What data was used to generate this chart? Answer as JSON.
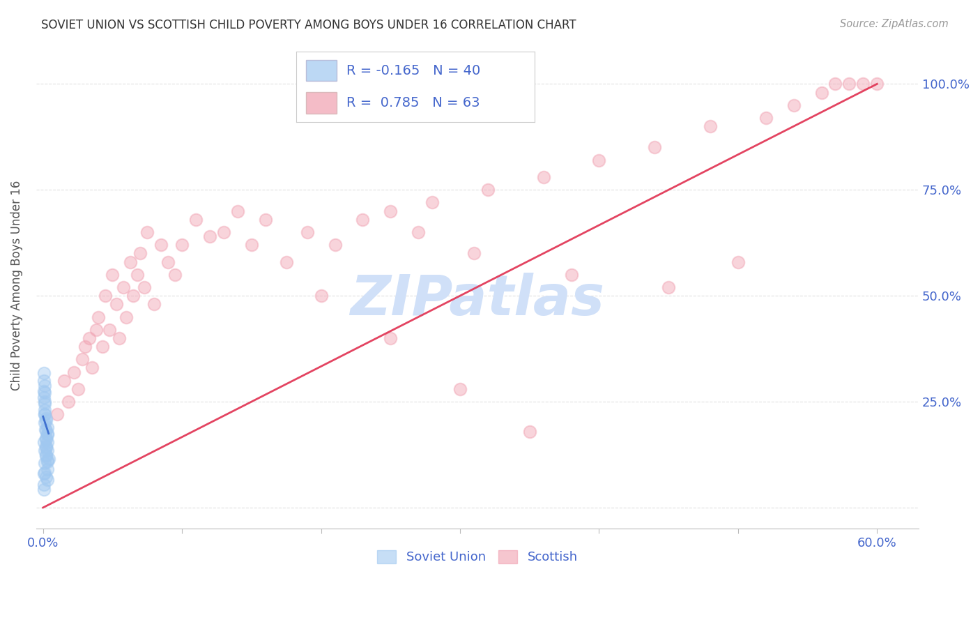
{
  "title": "SOVIET UNION VS SCOTTISH CHILD POVERTY AMONG BOYS UNDER 16 CORRELATION CHART",
  "source": "Source: ZipAtlas.com",
  "ylabel": "Child Poverty Among Boys Under 16",
  "xlim": [
    -0.005,
    0.63
  ],
  "ylim": [
    -0.05,
    1.1
  ],
  "legend_r1": "-0.165",
  "legend_n1": "40",
  "legend_r2": "0.785",
  "legend_n2": "63",
  "blue_color": "#A0C8F0",
  "pink_color": "#F0A0B0",
  "trendline_blue_color": "#3366CC",
  "trendline_pink_color": "#E03050",
  "watermark_color": "#D0E0F8",
  "axis_label_color": "#4466CC",
  "title_color": "#333333",
  "background_color": "#FFFFFF",
  "grid_color": "#DDDDDD",
  "soviet_x": [
    0.0005,
    0.001,
    0.0015,
    0.001,
    0.0005,
    0.002,
    0.002,
    0.001,
    0.0005,
    0.003,
    0.002,
    0.001,
    0.003,
    0.002,
    0.001,
    0.0005,
    0.004,
    0.003,
    0.002,
    0.001,
    0.0005,
    0.002,
    0.003,
    0.001,
    0.003,
    0.002,
    0.0005,
    0.001,
    0.003,
    0.002,
    0.003,
    0.001,
    0.0005,
    0.002,
    0.003,
    0.001,
    0.0005,
    0.002,
    0.001,
    0.003
  ],
  "soviet_y": [
    0.275,
    0.22,
    0.185,
    0.25,
    0.155,
    0.205,
    0.125,
    0.105,
    0.08,
    0.175,
    0.145,
    0.22,
    0.19,
    0.165,
    0.135,
    0.3,
    0.115,
    0.09,
    0.21,
    0.23,
    0.26,
    0.072,
    0.065,
    0.245,
    0.155,
    0.182,
    0.055,
    0.2,
    0.135,
    0.162,
    0.108,
    0.272,
    0.318,
    0.142,
    0.112,
    0.082,
    0.042,
    0.122,
    0.288,
    0.172
  ],
  "scottish_x": [
    0.01,
    0.015,
    0.018,
    0.022,
    0.025,
    0.028,
    0.03,
    0.033,
    0.035,
    0.038,
    0.04,
    0.043,
    0.045,
    0.048,
    0.05,
    0.053,
    0.055,
    0.058,
    0.06,
    0.063,
    0.065,
    0.068,
    0.07,
    0.073,
    0.075,
    0.08,
    0.085,
    0.09,
    0.095,
    0.1,
    0.11,
    0.12,
    0.13,
    0.14,
    0.15,
    0.16,
    0.175,
    0.19,
    0.21,
    0.23,
    0.25,
    0.28,
    0.32,
    0.36,
    0.4,
    0.44,
    0.48,
    0.52,
    0.54,
    0.56,
    0.57,
    0.58,
    0.59,
    0.6,
    0.3,
    0.35,
    0.45,
    0.5,
    0.2,
    0.25,
    0.27,
    0.31,
    0.38
  ],
  "scottish_y": [
    0.22,
    0.3,
    0.25,
    0.32,
    0.28,
    0.35,
    0.38,
    0.4,
    0.33,
    0.42,
    0.45,
    0.38,
    0.5,
    0.42,
    0.55,
    0.48,
    0.4,
    0.52,
    0.45,
    0.58,
    0.5,
    0.55,
    0.6,
    0.52,
    0.65,
    0.48,
    0.62,
    0.58,
    0.55,
    0.62,
    0.68,
    0.64,
    0.65,
    0.7,
    0.62,
    0.68,
    0.58,
    0.65,
    0.62,
    0.68,
    0.7,
    0.72,
    0.75,
    0.78,
    0.82,
    0.85,
    0.9,
    0.92,
    0.95,
    0.98,
    1.0,
    1.0,
    1.0,
    1.0,
    0.28,
    0.18,
    0.52,
    0.58,
    0.5,
    0.4,
    0.65,
    0.6,
    0.55
  ],
  "sc_trend_x0": 0.0,
  "sc_trend_y0": 0.0,
  "sc_trend_x1": 0.6,
  "sc_trend_y1": 1.0,
  "sv_trend_x0": 0.0,
  "sv_trend_y0": 0.215,
  "sv_trend_x1": 0.004,
  "sv_trend_y1": 0.175
}
